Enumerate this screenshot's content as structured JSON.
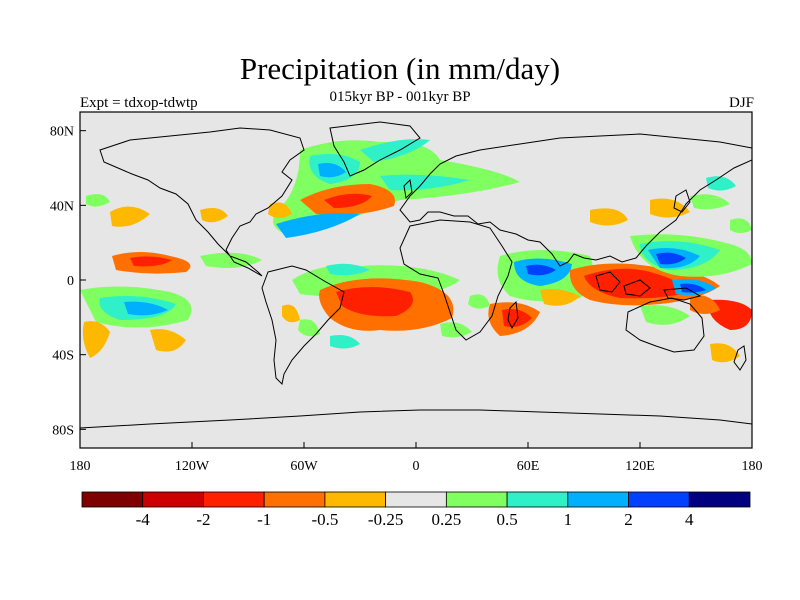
{
  "title": "Precipitation (in mm/day)",
  "subtitle": "015kyr BP - 001kyr BP",
  "left_label": "Expt = tdxop-tdwtp",
  "season_label": "DJF",
  "map": {
    "background_color": "#e6e6e6",
    "coastline_color": "#000000",
    "lat_ticks": [
      "80N",
      "40N",
      "0",
      "40S",
      "80S"
    ],
    "lat_values": [
      80,
      40,
      0,
      -40,
      -80
    ],
    "lon_ticks": [
      "180",
      "120W",
      "60W",
      "0",
      "60E",
      "120E",
      "180"
    ],
    "lon_values": [
      -180,
      -120,
      -60,
      0,
      60,
      120,
      180
    ]
  },
  "colorbar": {
    "colors": [
      "#7f0000",
      "#cc0000",
      "#ff2000",
      "#ff7000",
      "#ffb800",
      "#e6e6e6",
      "#80ff60",
      "#30f0c8",
      "#00b0ff",
      "#0040ff",
      "#000080"
    ],
    "labels": [
      "-4",
      "-2",
      "-1",
      "-0.5",
      "-0.25",
      "0.25",
      "0.5",
      "1",
      "2",
      "4"
    ]
  }
}
